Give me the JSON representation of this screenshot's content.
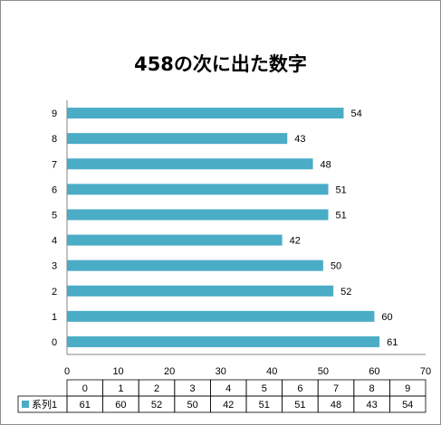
{
  "chart_data": {
    "type": "bar",
    "orientation": "horizontal",
    "title": "458の次に出た数字",
    "categories": [
      "0",
      "1",
      "2",
      "3",
      "4",
      "5",
      "6",
      "7",
      "8",
      "9"
    ],
    "series": [
      {
        "name": "系列1",
        "values": [
          61,
          60,
          52,
          50,
          42,
          51,
          51,
          48,
          43,
          54
        ]
      }
    ],
    "xlim": [
      0,
      70
    ],
    "x_ticks": [
      "0",
      "10",
      "20",
      "30",
      "40",
      "50",
      "60",
      "70"
    ],
    "data_labels": true,
    "data_table": true,
    "grid": false,
    "colors": {
      "bar": "#4bacc6",
      "axis": "#868686",
      "table_border": "#000000"
    }
  }
}
